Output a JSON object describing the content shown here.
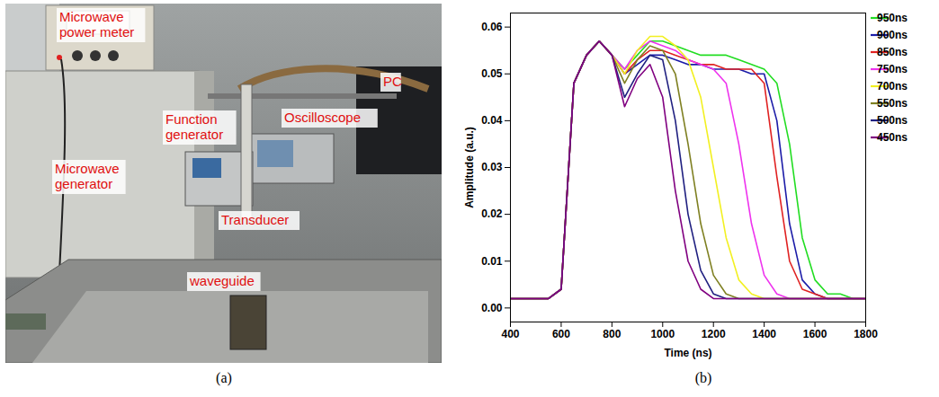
{
  "photo": {
    "caption": "(a)",
    "labels": [
      "Microwave power meter",
      "Function generator",
      "Microwave generator",
      "Oscilloscope",
      "PC",
      "Transducer",
      "waveguide"
    ]
  },
  "chart_data": {
    "type": "line",
    "caption": "(b)",
    "x_label": "Time (ns)",
    "y_label": "Amplitude (a.u.)",
    "x": [
      400,
      450,
      500,
      550,
      600,
      650,
      700,
      750,
      800,
      850,
      900,
      950,
      1000,
      1050,
      1100,
      1150,
      1200,
      1250,
      1300,
      1350,
      1400,
      1450,
      1500,
      1550,
      1600,
      1650,
      1700,
      1750,
      1800
    ],
    "xlim": [
      400,
      1800
    ],
    "xticks": [
      400,
      600,
      800,
      1000,
      1200,
      1400,
      1600,
      1800
    ],
    "ylim": [
      -0.003,
      0.063
    ],
    "yticks": [
      {
        "value": 0,
        "label": "0.00"
      },
      {
        "value": 0.01,
        "label": "0.01"
      },
      {
        "value": 0.02,
        "label": "0.02"
      },
      {
        "value": 0.03,
        "label": "0.03"
      },
      {
        "value": 0.04,
        "label": "0.04"
      },
      {
        "value": 0.05,
        "label": "0.05"
      },
      {
        "value": 0.06,
        "label": "0.06"
      }
    ],
    "grid": false,
    "legend": "top-right",
    "series": [
      {
        "name": "950ns",
        "color": "#22dd22",
        "values": [
          0.002,
          0.002,
          0.002,
          0.002,
          0.004,
          0.048,
          0.054,
          0.057,
          0.054,
          0.051,
          0.054,
          0.057,
          0.057,
          0.056,
          0.055,
          0.054,
          0.054,
          0.054,
          0.053,
          0.052,
          0.051,
          0.048,
          0.035,
          0.015,
          0.006,
          0.003,
          0.003,
          0.002,
          0.002
        ]
      },
      {
        "name": "900ns",
        "color": "#1c1ca8",
        "values": [
          0.002,
          0.002,
          0.002,
          0.002,
          0.004,
          0.048,
          0.054,
          0.057,
          0.054,
          0.05,
          0.052,
          0.054,
          0.054,
          0.053,
          0.052,
          0.052,
          0.051,
          0.051,
          0.051,
          0.05,
          0.05,
          0.04,
          0.018,
          0.006,
          0.003,
          0.002,
          0.002,
          0.002,
          0.002
        ]
      },
      {
        "name": "850ns",
        "color": "#e02222",
        "values": [
          0.002,
          0.002,
          0.002,
          0.002,
          0.004,
          0.048,
          0.054,
          0.057,
          0.054,
          0.05,
          0.053,
          0.055,
          0.055,
          0.054,
          0.053,
          0.052,
          0.052,
          0.051,
          0.051,
          0.051,
          0.048,
          0.028,
          0.01,
          0.004,
          0.003,
          0.002,
          0.002,
          0.002,
          0.002
        ]
      },
      {
        "name": "750ns",
        "color": "#ee33ee",
        "values": [
          0.002,
          0.002,
          0.002,
          0.002,
          0.004,
          0.048,
          0.054,
          0.057,
          0.054,
          0.051,
          0.055,
          0.057,
          0.056,
          0.055,
          0.053,
          0.052,
          0.051,
          0.048,
          0.035,
          0.018,
          0.007,
          0.003,
          0.002,
          0.002,
          0.002,
          0.002,
          0.002,
          0.002,
          0.002
        ]
      },
      {
        "name": "700ns",
        "color": "#f2f022",
        "values": [
          0.002,
          0.002,
          0.002,
          0.002,
          0.004,
          0.048,
          0.054,
          0.057,
          0.054,
          0.05,
          0.055,
          0.058,
          0.058,
          0.056,
          0.053,
          0.045,
          0.03,
          0.015,
          0.006,
          0.003,
          0.002,
          0.002,
          0.002,
          0.002,
          0.002,
          0.002,
          0.002,
          0.002,
          0.002
        ]
      },
      {
        "name": "550ns",
        "color": "#7f8022",
        "values": [
          0.002,
          0.002,
          0.002,
          0.002,
          0.004,
          0.048,
          0.054,
          0.057,
          0.054,
          0.048,
          0.053,
          0.056,
          0.055,
          0.05,
          0.035,
          0.018,
          0.007,
          0.003,
          0.002,
          0.002,
          0.002,
          0.002,
          0.002,
          0.002,
          0.002,
          0.002,
          0.002,
          0.002,
          0.002
        ]
      },
      {
        "name": "500ns",
        "color": "#202080",
        "values": [
          0.002,
          0.002,
          0.002,
          0.002,
          0.004,
          0.048,
          0.054,
          0.057,
          0.054,
          0.045,
          0.05,
          0.054,
          0.053,
          0.04,
          0.02,
          0.008,
          0.003,
          0.002,
          0.002,
          0.002,
          0.002,
          0.002,
          0.002,
          0.002,
          0.002,
          0.002,
          0.002,
          0.002,
          0.002
        ]
      },
      {
        "name": "450ns",
        "color": "#800080",
        "values": [
          0.002,
          0.002,
          0.002,
          0.002,
          0.004,
          0.048,
          0.054,
          0.057,
          0.054,
          0.043,
          0.049,
          0.052,
          0.045,
          0.025,
          0.01,
          0.004,
          0.002,
          0.002,
          0.002,
          0.002,
          0.002,
          0.002,
          0.002,
          0.002,
          0.002,
          0.002,
          0.002,
          0.002,
          0.002
        ]
      }
    ]
  }
}
